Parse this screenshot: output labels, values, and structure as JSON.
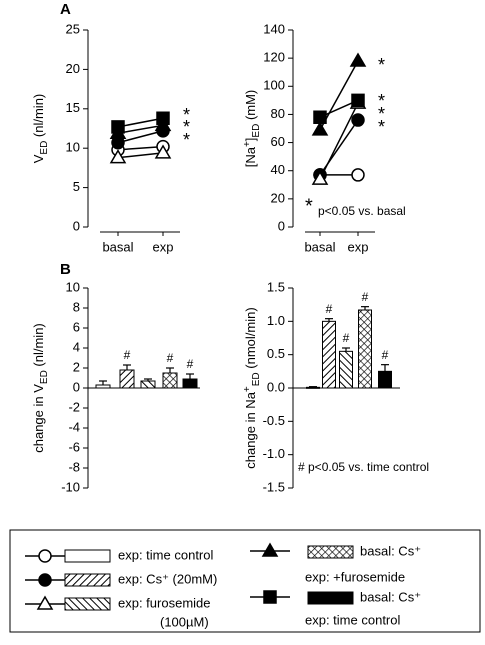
{
  "panel_labels": [
    "A",
    "B"
  ],
  "chart_data": [
    {
      "type": "line",
      "ylabel": [
        {
          "text": "V"
        },
        {
          "text": "ED",
          "shift": "sub"
        },
        {
          "text": " (nl/min)"
        }
      ],
      "categories": [
        "basal",
        "exp"
      ],
      "ylim": [
        0,
        25
      ],
      "yticks": [
        0,
        5,
        10,
        15,
        20,
        25
      ],
      "series": [
        {
          "marker": "circle",
          "filled": false,
          "color": "#000000",
          "values": [
            9.8,
            10.2
          ]
        },
        {
          "marker": "circle",
          "filled": true,
          "color": "#000000",
          "values": [
            10.7,
            12.2
          ]
        },
        {
          "marker": "triangle",
          "filled": false,
          "color": "#000000",
          "values": [
            8.8,
            9.4
          ]
        },
        {
          "marker": "triangle",
          "filled": true,
          "color": "#000000",
          "values": [
            11.9,
            12.9
          ]
        },
        {
          "marker": "square",
          "filled": true,
          "color": "#000000",
          "values": [
            12.7,
            13.8
          ]
        }
      ],
      "annotations": [
        "*",
        "*",
        "*"
      ]
    },
    {
      "type": "line",
      "ylabel": [
        {
          "text": "[Na"
        },
        {
          "text": "+",
          "shift": "super"
        },
        {
          "text": "]"
        },
        {
          "text": "ED",
          "shift": "sub"
        },
        {
          "text": " (mM)"
        }
      ],
      "categories": [
        "basal",
        "exp"
      ],
      "ylim": [
        0,
        140
      ],
      "yticks": [
        0,
        20,
        40,
        60,
        80,
        100,
        120,
        140
      ],
      "series": [
        {
          "marker": "circle",
          "filled": false,
          "color": "#000000",
          "values": [
            37,
            37
          ]
        },
        {
          "marker": "circle",
          "filled": true,
          "color": "#000000",
          "values": [
            37,
            76
          ]
        },
        {
          "marker": "triangle",
          "filled": false,
          "color": "#000000",
          "values": [
            34,
            88
          ]
        },
        {
          "marker": "triangle",
          "filled": true,
          "color": "#000000",
          "values": [
            69,
            118
          ]
        },
        {
          "marker": "square",
          "filled": true,
          "color": "#000000",
          "values": [
            78,
            90
          ]
        }
      ],
      "annotations": [
        "*",
        "*",
        "*",
        "*"
      ],
      "note": [
        "*",
        "p<0.05 vs. basal"
      ]
    },
    {
      "type": "bar",
      "ylabel": [
        {
          "text": "change in V"
        },
        {
          "text": "ED",
          "shift": "sub"
        },
        {
          "text": " (nl/min)"
        }
      ],
      "ylim": [
        -10,
        10
      ],
      "yticks": [
        -10,
        -8,
        -6,
        -4,
        -2,
        0,
        2,
        4,
        6,
        8,
        10
      ],
      "values": [
        0.3,
        1.8,
        0.7,
        1.5,
        0.9
      ],
      "errors": [
        0.4,
        0.5,
        0.2,
        0.5,
        0.5
      ],
      "patterns": [
        "open",
        "fwd",
        "back",
        "cross",
        "solid"
      ],
      "significance": [
        null,
        "#",
        null,
        "#",
        "#"
      ]
    },
    {
      "type": "bar",
      "ylabel": [
        {
          "text": "change in Na"
        },
        {
          "text": "+",
          "shift": "super"
        },
        {
          "text": "ED",
          "shift": "sub"
        },
        {
          "text": " (nmol/min)"
        }
      ],
      "ylim": [
        -1.5,
        1.5
      ],
      "yticks": [
        -1.5,
        {
          "value": -1,
          "label": "-1.0"
        },
        -0.5,
        {
          "value": 0,
          "label": "0.0"
        },
        0.5,
        {
          "value": 1,
          "label": "1.0"
        },
        1.5
      ],
      "values": [
        0.01,
        1.0,
        0.55,
        1.17,
        0.25
      ],
      "errors": [
        0.01,
        0.04,
        0.05,
        0.05,
        0.1
      ],
      "patterns": [
        "open",
        "fwd",
        "back",
        "cross",
        "solid"
      ],
      "significance": [
        null,
        "#",
        "#",
        "#",
        "#"
      ],
      "note": [
        "# p<0.05 vs. time control"
      ]
    }
  ],
  "legend": [
    {
      "marker": "circle",
      "filled": false,
      "pattern": "open",
      "lines": [
        "exp: time control"
      ]
    },
    {
      "marker": "circle",
      "filled": true,
      "pattern": "fwd",
      "lines": [
        "exp: Cs⁺ (20mM)"
      ]
    },
    {
      "marker": "triangle",
      "filled": false,
      "pattern": "back",
      "lines": [
        "exp: furosemide",
        "(100µM)"
      ]
    },
    {
      "marker": "triangle",
      "filled": true,
      "pattern": "cross",
      "lines": [
        "basal: Cs⁺",
        "exp: +furosemide"
      ]
    },
    {
      "marker": "square",
      "filled": true,
      "pattern": "solid",
      "lines": [
        "basal: Cs⁺",
        "exp: time control"
      ]
    }
  ]
}
